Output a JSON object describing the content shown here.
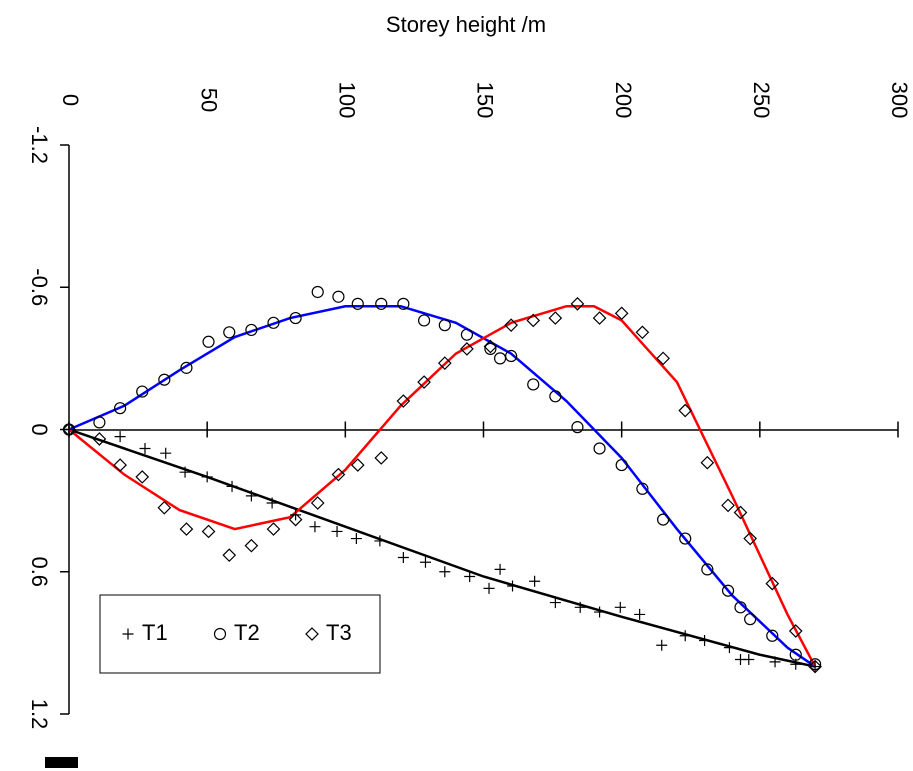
{
  "chart_data": {
    "type": "scatter",
    "title": "Storey height /m",
    "xlim": [
      0,
      300
    ],
    "xticks": [
      0,
      50,
      100,
      150,
      200,
      250,
      300
    ],
    "ylim": [
      -1.2,
      1.2
    ],
    "yticks": [
      -1.2,
      -0.6,
      0,
      0.6,
      1.2
    ],
    "legend": "bottom-left",
    "series": [
      {
        "name": "T1",
        "marker": "plus",
        "color": "#000000",
        "x": [
          0,
          18.5,
          27.5,
          35,
          42,
          50,
          59,
          66,
          73.5,
          82,
          89,
          97,
          104,
          112.5,
          121,
          129,
          136,
          145,
          152,
          156,
          160.5,
          168.5,
          176,
          185,
          192,
          199.5,
          206.5,
          214.5,
          223,
          230,
          239,
          243,
          246,
          255.5,
          263,
          270
        ],
        "values": [
          0,
          0.03,
          0.08,
          0.1,
          0.18,
          0.2,
          0.24,
          0.28,
          0.31,
          0.36,
          0.41,
          0.43,
          0.46,
          0.47,
          0.54,
          0.56,
          0.6,
          0.62,
          0.67,
          0.59,
          0.66,
          0.64,
          0.73,
          0.75,
          0.77,
          0.75,
          0.78,
          0.91,
          0.87,
          0.89,
          0.92,
          0.97,
          0.97,
          0.98,
          0.99,
          1.0
        ]
      },
      {
        "name": "T2",
        "marker": "circle",
        "color": "#000000",
        "x": [
          0,
          11,
          18.5,
          26.5,
          34.5,
          42.5,
          50.5,
          58,
          66,
          74,
          82,
          90,
          97.5,
          104.5,
          113,
          121,
          128.5,
          136,
          144,
          152.5,
          156,
          160,
          168,
          176,
          184,
          192,
          200,
          207.5,
          215,
          223,
          231,
          238.5,
          243,
          246.5,
          254.5,
          263,
          270
        ],
        "values": [
          0,
          -0.03,
          -0.09,
          -0.16,
          -0.21,
          -0.26,
          -0.37,
          -0.41,
          -0.42,
          -0.45,
          -0.47,
          -0.58,
          -0.56,
          -0.53,
          -0.53,
          -0.53,
          -0.46,
          -0.44,
          -0.4,
          -0.34,
          -0.3,
          -0.31,
          -0.19,
          -0.14,
          -0.01,
          0.08,
          0.15,
          0.25,
          0.38,
          0.46,
          0.59,
          0.68,
          0.75,
          0.8,
          0.87,
          0.95,
          0.99
        ]
      },
      {
        "name": "T3",
        "marker": "diamond",
        "color": "#000000",
        "x": [
          0,
          11,
          18.5,
          26.5,
          34.5,
          42.5,
          50.5,
          58,
          66,
          74,
          82,
          90,
          97.5,
          104.5,
          113,
          121,
          128.5,
          136,
          144,
          152.5,
          160,
          168,
          176,
          184,
          192,
          200,
          207.5,
          215,
          223,
          231,
          238.5,
          243,
          246.5,
          254.5,
          263,
          270
        ],
        "values": [
          0,
          0.04,
          0.15,
          0.2,
          0.33,
          0.42,
          0.43,
          0.53,
          0.49,
          0.42,
          0.38,
          0.31,
          0.19,
          0.15,
          0.12,
          -0.12,
          -0.2,
          -0.28,
          -0.34,
          -0.35,
          -0.44,
          -0.46,
          -0.47,
          -0.53,
          -0.47,
          -0.49,
          -0.41,
          -0.3,
          -0.08,
          0.14,
          0.32,
          0.35,
          0.46,
          0.65,
          0.85,
          1.0
        ]
      }
    ],
    "fits": [
      {
        "color": "#000000",
        "x": [
          0,
          50,
          100,
          150,
          200,
          250,
          270
        ],
        "values": [
          0,
          0.2,
          0.41,
          0.62,
          0.79,
          0.95,
          1.0
        ]
      },
      {
        "color": "#0000ff",
        "x": [
          0,
          20,
          40,
          60,
          80,
          100,
          120,
          140,
          160,
          180,
          200,
          220,
          240,
          260,
          270
        ],
        "values": [
          0,
          -0.1,
          -0.25,
          -0.39,
          -0.47,
          -0.52,
          -0.52,
          -0.45,
          -0.32,
          -0.12,
          0.12,
          0.42,
          0.7,
          0.92,
          1.0
        ]
      },
      {
        "color": "#ff0000",
        "x": [
          0,
          20,
          40,
          60,
          80,
          100,
          120,
          140,
          160,
          180,
          190,
          200,
          220,
          240,
          260,
          270
        ],
        "values": [
          0,
          0.19,
          0.34,
          0.42,
          0.37,
          0.17,
          -0.1,
          -0.32,
          -0.45,
          -0.52,
          -0.52,
          -0.46,
          -0.2,
          0.28,
          0.78,
          1.0
        ]
      }
    ]
  }
}
